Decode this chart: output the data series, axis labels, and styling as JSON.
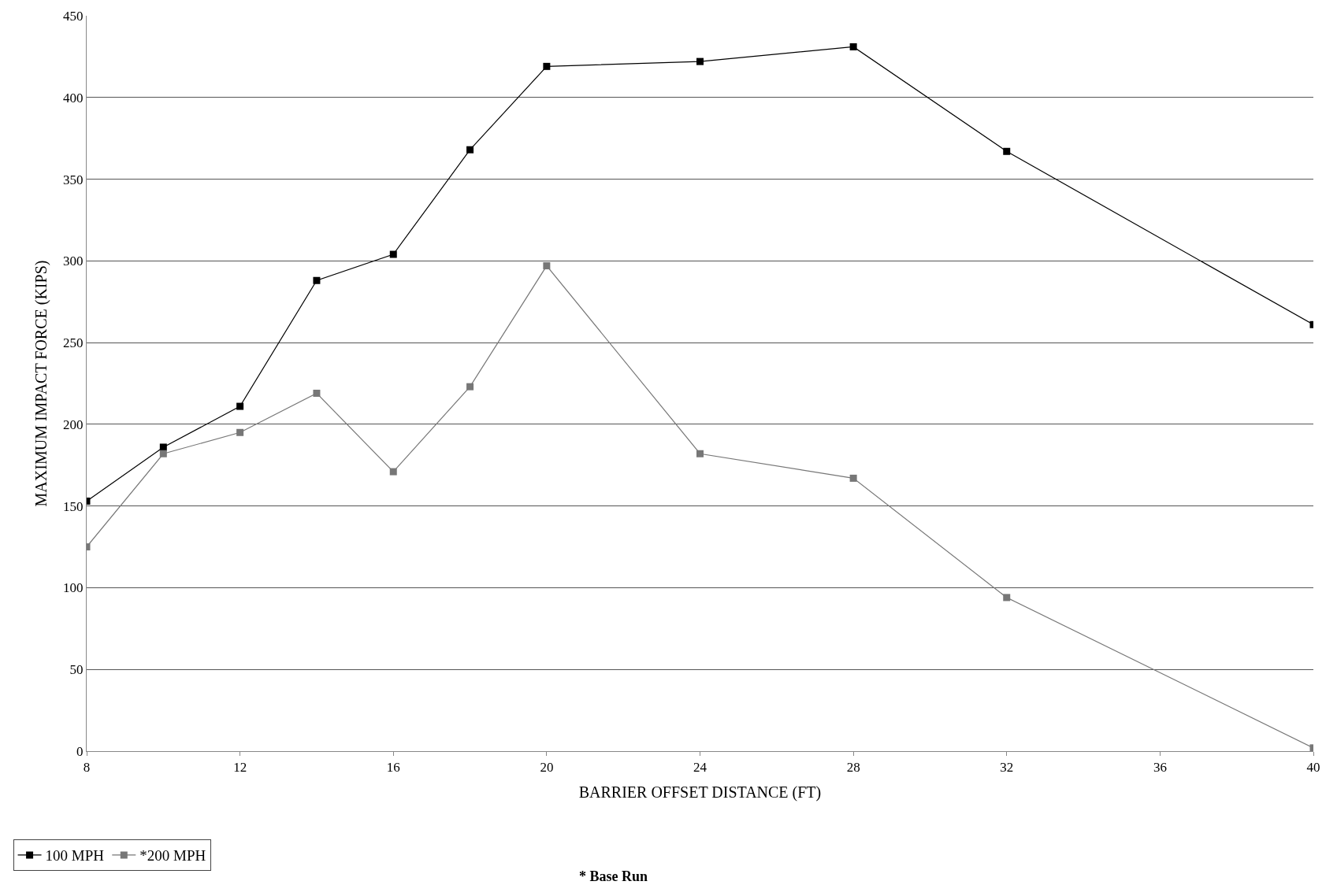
{
  "chart_data": {
    "type": "line",
    "xlabel": "BARRIER OFFSET DISTANCE (FT)",
    "ylabel": "MAXIMUM IMPACT FORCE (KIPS)",
    "x": [
      8,
      10,
      12,
      14,
      16,
      18,
      20,
      24,
      28,
      32,
      40
    ],
    "series": [
      {
        "name": "100 MPH",
        "color": "#000000",
        "values": [
          153,
          186,
          211,
          288,
          304,
          368,
          419,
          422,
          431,
          367,
          261
        ]
      },
      {
        "name": "*200 MPH",
        "color": "#777777",
        "values": [
          125,
          182,
          195,
          219,
          171,
          223,
          297,
          182,
          167,
          94,
          2
        ]
      }
    ],
    "xlim": [
      8,
      40
    ],
    "xticks": [
      8,
      12,
      16,
      20,
      24,
      28,
      32,
      36,
      40
    ],
    "ylim": [
      0,
      450
    ],
    "yticks": [
      0,
      50,
      100,
      150,
      200,
      250,
      300,
      350,
      400,
      450
    ],
    "grid": "y",
    "legend": "bottom left",
    "marker": "square",
    "line_style": "solid",
    "annotations": [
      "* Base Run"
    ]
  }
}
